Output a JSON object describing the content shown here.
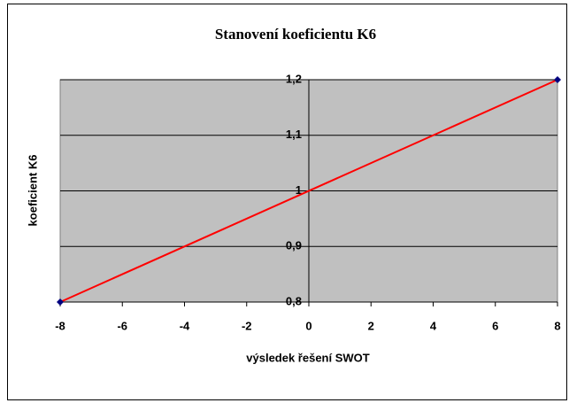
{
  "chart_data": {
    "type": "scatter",
    "title": "Stanovení koeficientu K6",
    "x_label": "výsledek řešení SWOT",
    "y_label": "koeficient K6",
    "x": [
      -8,
      8
    ],
    "values": [
      0.8,
      1.2
    ],
    "color": "#ff0000",
    "marker_color": "#000080",
    "xlim": [
      -8,
      8
    ],
    "xticks": [
      -8,
      -6,
      -4,
      -2,
      0,
      2,
      4,
      6,
      8
    ],
    "ylim": [
      0.8,
      1.2
    ],
    "yticks": [
      {
        "value": 0.8,
        "label": "0,8"
      },
      {
        "value": 0.9,
        "label": "0,9"
      },
      1,
      {
        "value": 1.1,
        "label": "1,1"
      },
      {
        "value": 1.2,
        "label": "1,2"
      }
    ],
    "grid": true,
    "plot_background": "#c0c0c0"
  }
}
